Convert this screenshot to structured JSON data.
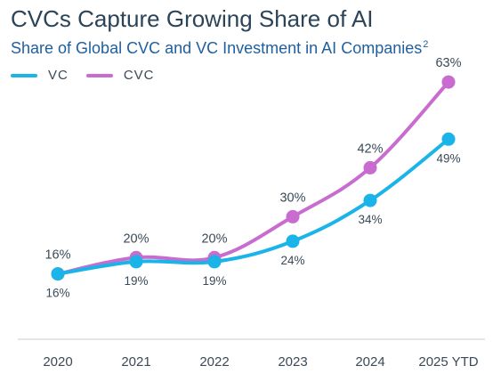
{
  "header": {
    "title": "CVCs Capture Growing Share of AI",
    "subtitle": "Share of Global CVC and VC Investment in AI Companies",
    "subtitle_sup": "2"
  },
  "colors": {
    "vc": "#1ab4e8",
    "cvc": "#c86cd0",
    "axis": "#d6d6d6"
  },
  "chart_data": {
    "type": "line",
    "title": "CVCs Capture Growing Share of AI",
    "subtitle": "Share of Global CVC and VC Investment in AI Companies",
    "categories": [
      "2020",
      "2021",
      "2022",
      "2023",
      "2024",
      "2025 YTD"
    ],
    "ylim": [
      0,
      70
    ],
    "grid": false,
    "legend_position": "top-left",
    "series": [
      {
        "name": "VC",
        "values": [
          16,
          19,
          19,
          24,
          34,
          49
        ],
        "labels": [
          "16%",
          "19%",
          "19%",
          "24%",
          "34%",
          "49%"
        ],
        "label_position": "below"
      },
      {
        "name": "CVC",
        "values": [
          16,
          20,
          20,
          30,
          42,
          63
        ],
        "labels": [
          "16%",
          "20%",
          "20%",
          "30%",
          "42%",
          "63%"
        ],
        "label_position": "above"
      }
    ]
  }
}
